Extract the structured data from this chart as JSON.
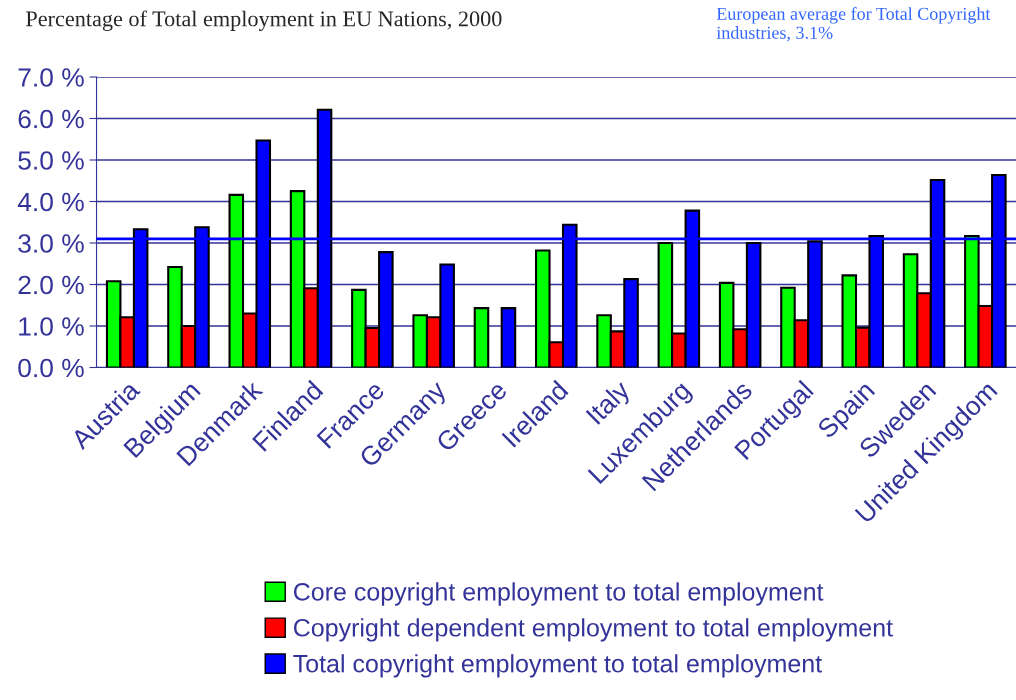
{
  "chart_data": {
    "type": "bar",
    "title": "Percentage of Total employment in EU Nations, 2000",
    "categories": [
      "Austria",
      "Belgium",
      "Denmark",
      "Finland",
      "France",
      "Germany",
      "Greece",
      "Ireland",
      "Italy",
      "Luxemburg",
      "Netherlands",
      "Portugal",
      "Spain",
      "Sweden",
      "United Kingdom"
    ],
    "series": [
      {
        "name": "Core copyright employment to total employment",
        "color": "#00ff00",
        "values": [
          2.08,
          2.42,
          4.16,
          4.25,
          1.87,
          1.26,
          1.43,
          2.82,
          1.26,
          3.0,
          2.04,
          1.92,
          2.22,
          2.73,
          3.17
        ]
      },
      {
        "name": "Copyright dependent employment to total employment",
        "color": "#ff0000",
        "values": [
          1.21,
          1.0,
          1.3,
          1.91,
          0.95,
          1.21,
          null,
          0.61,
          0.87,
          0.82,
          0.92,
          1.14,
          0.96,
          1.79,
          1.48
        ]
      },
      {
        "name": "Total copyright employment to total employment",
        "color": "#0000ff",
        "values": [
          3.33,
          3.38,
          5.47,
          6.21,
          2.78,
          2.48,
          1.43,
          3.44,
          2.13,
          3.78,
          3.0,
          3.04,
          3.17,
          4.52,
          4.64
        ]
      }
    ],
    "ylim": [
      0,
      7
    ],
    "yticks": [
      {
        "value": 0,
        "label": "0.0 %"
      },
      {
        "value": 1,
        "label": "1.0 %"
      },
      {
        "value": 2,
        "label": "2.0 %"
      },
      {
        "value": 3,
        "label": "3.0 %"
      },
      {
        "value": 4,
        "label": "4.0 %"
      },
      {
        "value": 5,
        "label": "5.0 %"
      },
      {
        "value": 6,
        "label": "6.0 %"
      },
      {
        "value": 7,
        "label": "7.0 %"
      }
    ],
    "ref_lines": [
      {
        "axis": "y",
        "value": 3.1,
        "color": "#0000ff"
      }
    ],
    "annotations": [
      "European average for Total Copyright industries, 3.1%"
    ],
    "grid": "y",
    "legend": "bottom"
  }
}
